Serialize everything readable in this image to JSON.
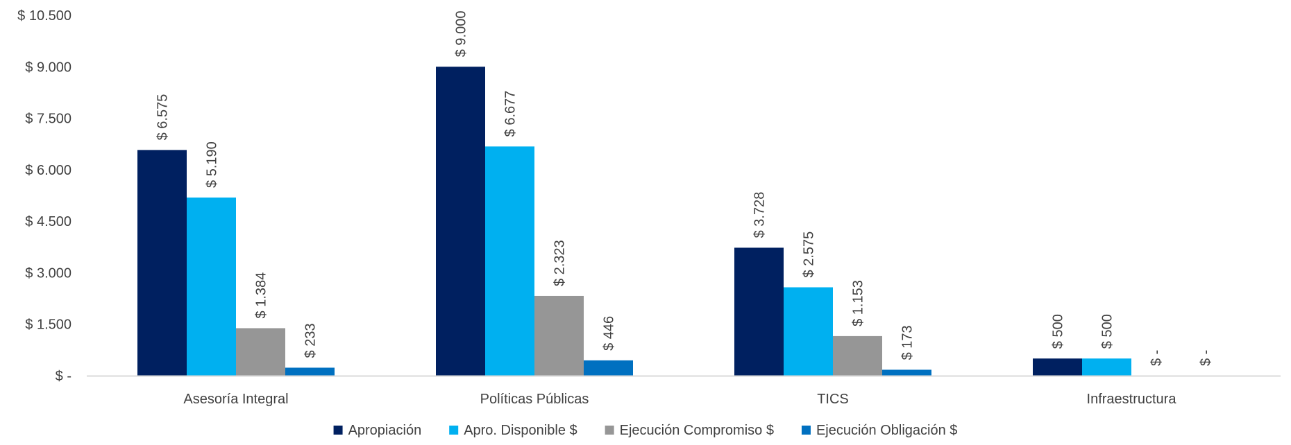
{
  "chart_data": {
    "type": "bar",
    "title": "",
    "xlabel": "",
    "ylabel": "",
    "ylim": [
      0,
      10500
    ],
    "y_ticks": [
      {
        "value": 0,
        "label": "$ -"
      },
      {
        "value": 1500,
        "label": "$ 1.500"
      },
      {
        "value": 3000,
        "label": "$ 3.000"
      },
      {
        "value": 4500,
        "label": "$ 4.500"
      },
      {
        "value": 6000,
        "label": "$ 6.000"
      },
      {
        "value": 7500,
        "label": "$ 7.500"
      },
      {
        "value": 9000,
        "label": "$ 9.000"
      },
      {
        "value": 10500,
        "label": "$ 10.500"
      }
    ],
    "categories": [
      "Asesoría Integral",
      "Políticas Públicas",
      "TICS",
      "Infraestructura"
    ],
    "series": [
      {
        "name": "Apropiación",
        "color": "#002060",
        "values": [
          6575,
          9000,
          3728,
          500
        ],
        "labels": [
          "$ 6.575",
          "$ 9.000",
          "$ 3.728",
          "$ 500"
        ]
      },
      {
        "name": "Apro. Disponible $",
        "color": "#00B0F0",
        "values": [
          5190,
          6677,
          2575,
          500
        ],
        "labels": [
          "$ 5.190",
          "$ 6.677",
          "$ 2.575",
          "$ 500"
        ]
      },
      {
        "name": "Ejecución Compromiso  $",
        "color": "#969696",
        "values": [
          1384,
          2323,
          1153,
          0
        ],
        "labels": [
          "$ 1.384",
          "$ 2.323",
          "$ 1.153",
          "$ -"
        ]
      },
      {
        "name": "Ejecución Obligación  $",
        "color": "#0070C0",
        "values": [
          233,
          446,
          173,
          0
        ],
        "labels": [
          "$ 233",
          "$ 446",
          "$ 173",
          "$ -"
        ]
      }
    ],
    "grid": false,
    "legend_position": "bottom-center",
    "data_labels": "rotated-vertical"
  }
}
